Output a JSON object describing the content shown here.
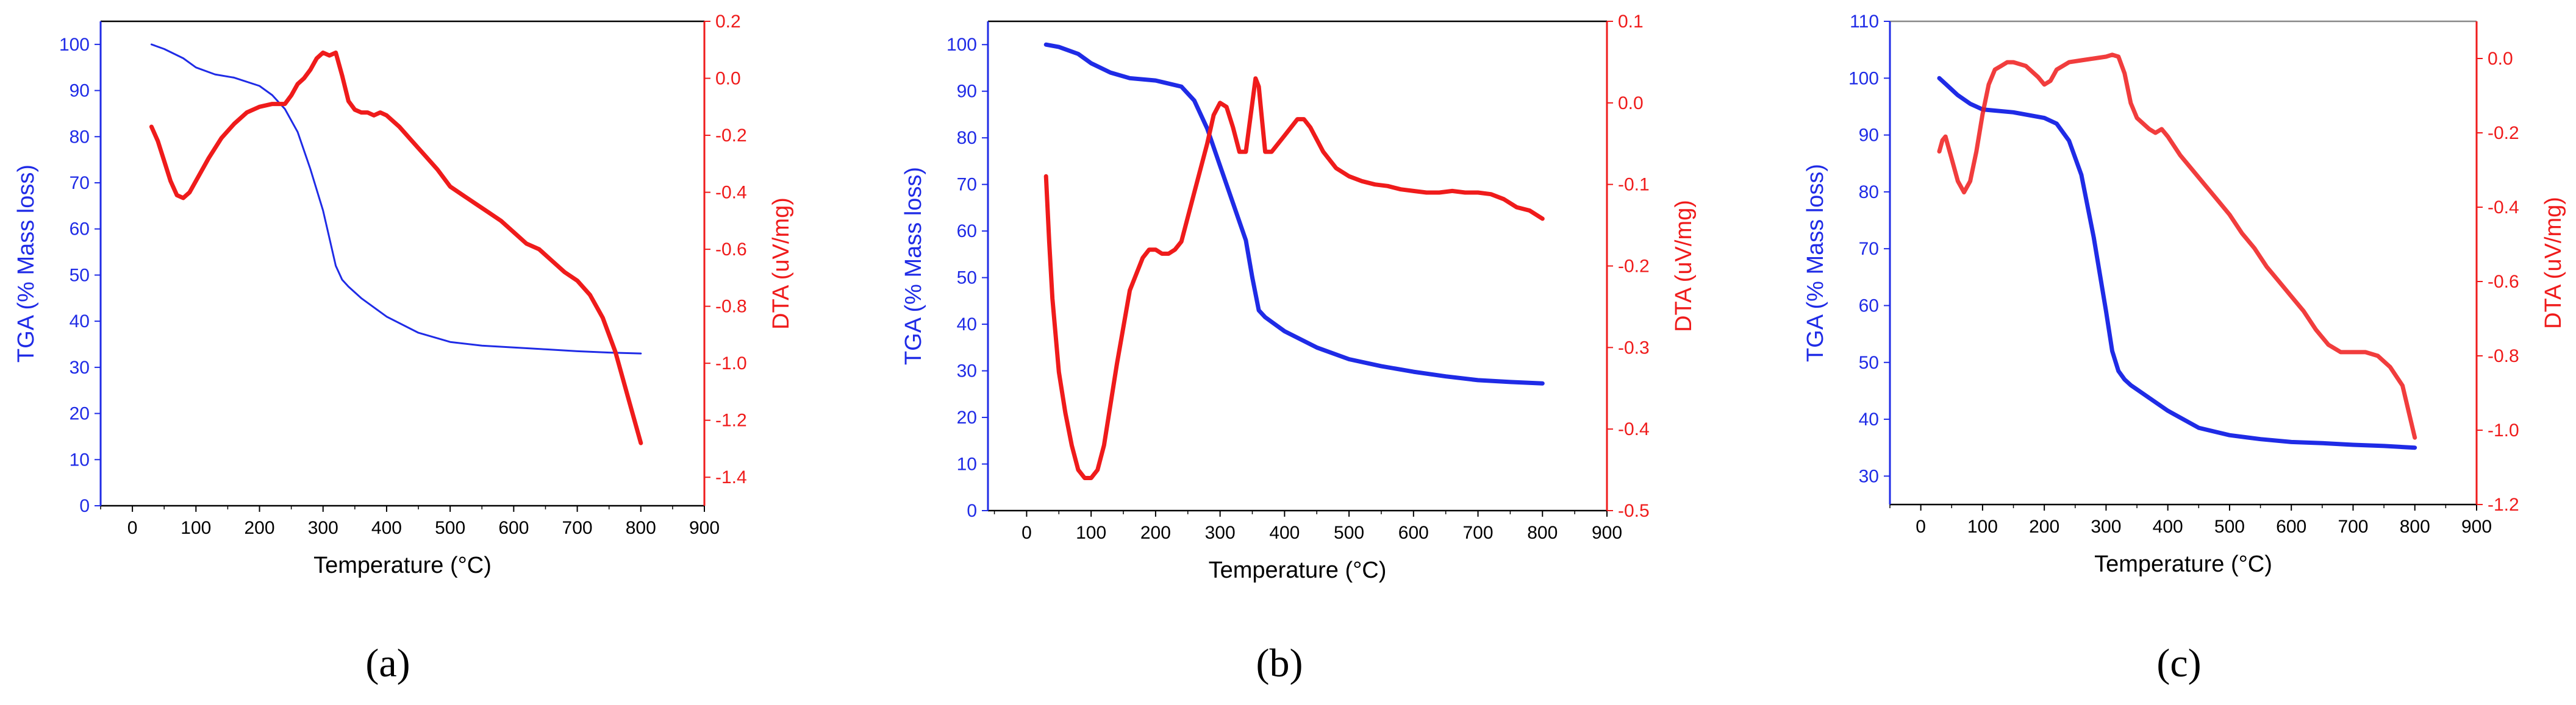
{
  "colors": {
    "tga": "#1f2be6",
    "dta": "#ef1b1b",
    "frame": "#000000",
    "top_frame_c": "#888888"
  },
  "chart_data": [
    {
      "type": "line",
      "panel_label": "(a)",
      "xlabel": "Temperature (°C)",
      "ylabel_left": "TGA (% Mass loss)",
      "ylabel_right": "DTA (uV/mg)",
      "xlim": [
        -50,
        900
      ],
      "ylim_left": [
        0,
        105
      ],
      "ylim_right": [
        -1.5,
        0.2
      ],
      "x_ticks": [
        "0",
        "100",
        "200",
        "300",
        "400",
        "500",
        "600",
        "700",
        "800",
        "900"
      ],
      "y_left_ticks": [
        "0",
        "10",
        "20",
        "30",
        "40",
        "50",
        "60",
        "70",
        "80",
        "90",
        "100"
      ],
      "y_right_ticks": [
        "0.2",
        "0.0",
        "-0.2",
        "-0.4",
        "-0.6",
        "-0.8",
        "-1.0",
        "-1.2",
        "-1.4"
      ],
      "series": [
        {
          "name": "TGA",
          "axis": "left",
          "weight": "thin",
          "x": [
            30,
            50,
            80,
            100,
            130,
            160,
            200,
            220,
            240,
            260,
            280,
            300,
            310,
            320,
            330,
            340,
            360,
            400,
            450,
            500,
            550,
            600,
            650,
            700,
            750,
            800
          ],
          "y": [
            100,
            99,
            97,
            95,
            93.5,
            92.8,
            91,
            89,
            86,
            81,
            73,
            64,
            58,
            52,
            49,
            47.5,
            45,
            41,
            37.5,
            35.5,
            34.7,
            34.3,
            33.9,
            33.5,
            33.2,
            33
          ]
        },
        {
          "name": "DTA",
          "axis": "right",
          "weight": "thick",
          "x": [
            30,
            40,
            50,
            60,
            70,
            80,
            90,
            100,
            120,
            140,
            160,
            180,
            200,
            220,
            240,
            250,
            260,
            270,
            280,
            290,
            300,
            310,
            320,
            330,
            340,
            350,
            360,
            370,
            380,
            390,
            400,
            420,
            440,
            460,
            480,
            500,
            520,
            540,
            560,
            580,
            600,
            620,
            640,
            660,
            680,
            700,
            720,
            740,
            760,
            780,
            800
          ],
          "y": [
            -0.17,
            -0.22,
            -0.29,
            -0.36,
            -0.41,
            -0.42,
            -0.4,
            -0.36,
            -0.28,
            -0.21,
            -0.16,
            -0.12,
            -0.1,
            -0.09,
            -0.09,
            -0.06,
            -0.02,
            0.0,
            0.03,
            0.07,
            0.09,
            0.08,
            0.09,
            0.01,
            -0.08,
            -0.11,
            -0.12,
            -0.12,
            -0.13,
            -0.12,
            -0.13,
            -0.17,
            -0.22,
            -0.27,
            -0.32,
            -0.38,
            -0.41,
            -0.44,
            -0.47,
            -0.5,
            -0.54,
            -0.58,
            -0.6,
            -0.64,
            -0.68,
            -0.71,
            -0.76,
            -0.84,
            -0.96,
            -1.12,
            -1.28
          ]
        }
      ]
    },
    {
      "type": "line",
      "panel_label": "(b)",
      "xlabel": "Temperature (°C)",
      "ylabel_left": "TGA (% Mass loss)",
      "ylabel_right": "DTA (uV/mg)",
      "xlim": [
        -60,
        900
      ],
      "ylim_left": [
        0,
        105
      ],
      "ylim_right": [
        -0.5,
        0.1
      ],
      "x_ticks": [
        "0",
        "100",
        "200",
        "300",
        "400",
        "500",
        "600",
        "700",
        "800",
        "900"
      ],
      "y_left_ticks": [
        "0",
        "10",
        "20",
        "30",
        "40",
        "50",
        "60",
        "70",
        "80",
        "90",
        "100"
      ],
      "y_right_ticks": [
        "0.1",
        "0.0",
        "-0.1",
        "-0.2",
        "-0.3",
        "-0.4",
        "-0.5"
      ],
      "series": [
        {
          "name": "TGA",
          "axis": "left",
          "weight": "thick",
          "x": [
            30,
            50,
            80,
            100,
            130,
            160,
            200,
            240,
            260,
            280,
            300,
            320,
            340,
            350,
            360,
            370,
            380,
            400,
            450,
            500,
            550,
            600,
            650,
            700,
            750,
            800
          ],
          "y": [
            100,
            99.5,
            98,
            96,
            94,
            92.8,
            92.3,
            91,
            88,
            82,
            74,
            66,
            58,
            50,
            43,
            41.5,
            40.5,
            38.5,
            35,
            32.5,
            31,
            29.8,
            28.8,
            28,
            27.6,
            27.3
          ]
        },
        {
          "name": "DTA",
          "axis": "right",
          "weight": "thick",
          "x": [
            30,
            35,
            40,
            50,
            60,
            70,
            80,
            90,
            100,
            110,
            120,
            140,
            160,
            180,
            190,
            200,
            210,
            220,
            230,
            240,
            260,
            280,
            290,
            300,
            310,
            320,
            330,
            340,
            350,
            355,
            360,
            365,
            370,
            380,
            400,
            420,
            430,
            440,
            460,
            480,
            500,
            520,
            540,
            560,
            580,
            600,
            620,
            640,
            660,
            680,
            700,
            720,
            740,
            760,
            780,
            800
          ],
          "y": [
            -0.09,
            -0.17,
            -0.24,
            -0.33,
            -0.38,
            -0.42,
            -0.45,
            -0.46,
            -0.46,
            -0.45,
            -0.42,
            -0.32,
            -0.23,
            -0.19,
            -0.18,
            -0.18,
            -0.185,
            -0.185,
            -0.18,
            -0.17,
            -0.11,
            -0.05,
            -0.015,
            0.0,
            -0.005,
            -0.03,
            -0.06,
            -0.06,
            0.0,
            0.03,
            0.02,
            -0.02,
            -0.06,
            -0.06,
            -0.04,
            -0.02,
            -0.02,
            -0.03,
            -0.06,
            -0.08,
            -0.09,
            -0.096,
            -0.1,
            -0.102,
            -0.106,
            -0.108,
            -0.11,
            -0.11,
            -0.108,
            -0.11,
            -0.11,
            -0.112,
            -0.118,
            -0.128,
            -0.132,
            -0.142
          ]
        }
      ]
    },
    {
      "type": "line",
      "panel_label": "(c)",
      "xlabel": "Temperature (°C)",
      "ylabel_left": "TGA (% Mass loss)",
      "ylabel_right": "DTA (uV/mg)",
      "xlim": [
        -50,
        900
      ],
      "ylim_left": [
        25,
        110
      ],
      "ylim_right": [
        -1.2,
        0.1
      ],
      "x_ticks": [
        "0",
        "100",
        "200",
        "300",
        "400",
        "500",
        "600",
        "700",
        "800",
        "900"
      ],
      "y_left_ticks": [
        "30",
        "40",
        "50",
        "60",
        "70",
        "80",
        "90",
        "100",
        "110"
      ],
      "y_right_ticks": [
        "0.0",
        "-0.2",
        "-0.4",
        "-0.6",
        "-0.8",
        "-1.0",
        "-1.2"
      ],
      "series": [
        {
          "name": "TGA",
          "axis": "left",
          "weight": "thick",
          "x": [
            30,
            40,
            50,
            60,
            80,
            100,
            150,
            200,
            220,
            240,
            260,
            280,
            300,
            310,
            320,
            330,
            340,
            360,
            400,
            450,
            500,
            550,
            600,
            650,
            700,
            750,
            800
          ],
          "y": [
            100,
            99,
            98,
            97,
            95.5,
            94.5,
            94,
            93,
            92,
            89,
            83,
            72,
            59,
            52,
            48.5,
            47,
            46,
            44.5,
            41.5,
            38.5,
            37.2,
            36.5,
            36,
            35.8,
            35.5,
            35.3,
            35
          ]
        },
        {
          "name": "DTA",
          "axis": "right",
          "weight": "thick",
          "x": [
            30,
            35,
            40,
            50,
            60,
            70,
            80,
            90,
            100,
            110,
            120,
            130,
            140,
            150,
            170,
            190,
            200,
            210,
            220,
            240,
            260,
            280,
            300,
            310,
            320,
            330,
            340,
            350,
            370,
            380,
            390,
            400,
            420,
            440,
            460,
            480,
            500,
            520,
            540,
            560,
            580,
            600,
            620,
            640,
            660,
            680,
            700,
            720,
            740,
            760,
            780,
            800
          ],
          "y": [
            -0.25,
            -0.22,
            -0.21,
            -0.27,
            -0.33,
            -0.36,
            -0.33,
            -0.25,
            -0.15,
            -0.07,
            -0.03,
            -0.02,
            -0.01,
            -0.01,
            -0.02,
            -0.05,
            -0.07,
            -0.06,
            -0.03,
            -0.01,
            -0.005,
            0.0,
            0.005,
            0.01,
            0.005,
            -0.04,
            -0.12,
            -0.16,
            -0.19,
            -0.2,
            -0.19,
            -0.21,
            -0.26,
            -0.3,
            -0.34,
            -0.38,
            -0.42,
            -0.47,
            -0.51,
            -0.56,
            -0.6,
            -0.64,
            -0.68,
            -0.73,
            -0.77,
            -0.79,
            -0.79,
            -0.79,
            -0.8,
            -0.83,
            -0.88,
            -1.02
          ]
        }
      ]
    }
  ]
}
